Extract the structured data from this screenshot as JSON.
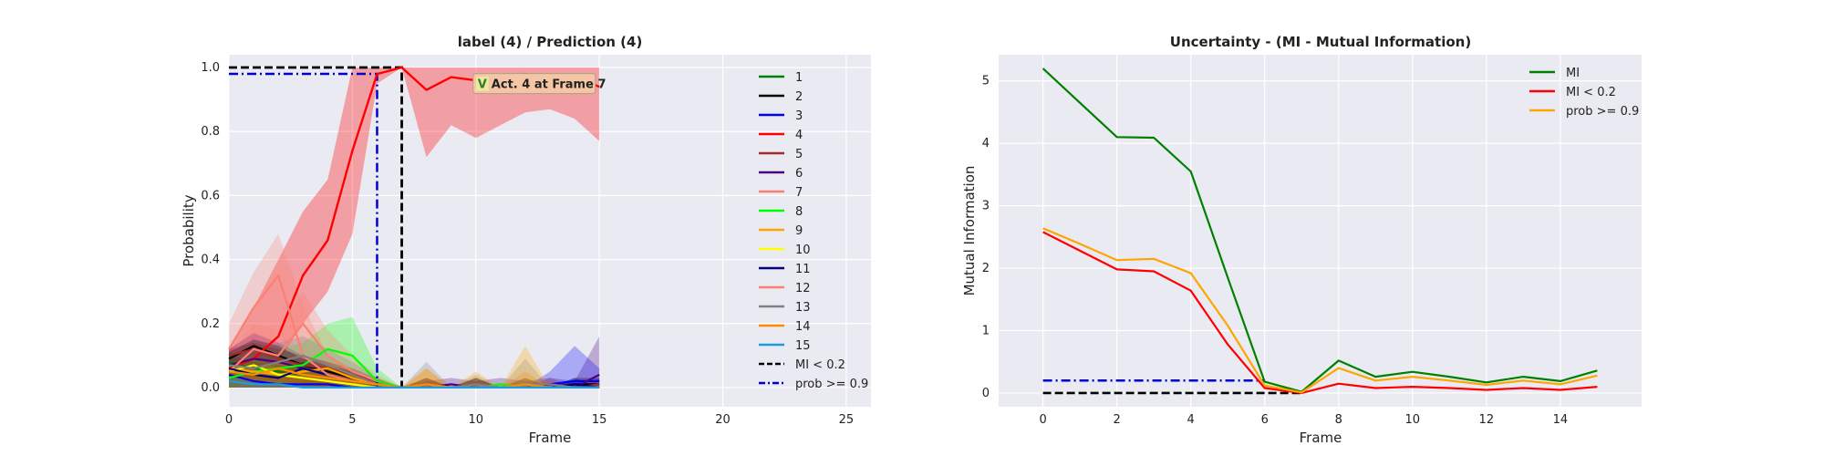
{
  "chart_data": [
    {
      "type": "line",
      "title": "label (4) / Prediction (4)",
      "xlabel": "Frame",
      "ylabel": "Probability",
      "xlim": [
        0,
        26
      ],
      "ylim": [
        -0.06,
        1.04
      ],
      "xticks": [
        "0",
        "5",
        "10",
        "15",
        "20",
        "25"
      ],
      "yticks": [
        "0.0",
        "0.2",
        "0.4",
        "0.6",
        "0.8",
        "1.0"
      ],
      "grid": true,
      "legend_position": "right",
      "x": [
        0,
        1,
        2,
        3,
        4,
        5,
        6,
        7,
        8,
        9,
        10,
        11,
        12,
        13,
        14,
        15
      ],
      "series": [
        {
          "name": "1",
          "color": "#008000",
          "values": [
            0.08,
            0.06,
            0.05,
            0.04,
            0.03,
            0.02,
            0.01,
            0.0,
            0.0,
            0.0,
            0.0,
            0.0,
            0.0,
            0.0,
            0.0,
            0.0
          ]
        },
        {
          "name": "2",
          "color": "#000000",
          "values": [
            0.09,
            0.13,
            0.1,
            0.07,
            0.05,
            0.03,
            0.01,
            0.0,
            0.01,
            0.0,
            0.01,
            0.0,
            0.01,
            0.0,
            0.01,
            0.01
          ]
        },
        {
          "name": "3",
          "color": "#0000ff",
          "values": [
            0.04,
            0.02,
            0.01,
            0.01,
            0.01,
            0.0,
            0.0,
            0.0,
            0.0,
            0.0,
            0.0,
            0.0,
            0.0,
            0.01,
            0.02,
            0.02
          ]
        },
        {
          "name": "4",
          "color": "#ff0000",
          "values": [
            0.06,
            0.09,
            0.16,
            0.35,
            0.46,
            0.74,
            0.98,
            1.0,
            0.93,
            0.97,
            0.96,
            0.97,
            0.98,
            0.96,
            0.97,
            0.94
          ]
        },
        {
          "name": "5",
          "color": "#a52a2a",
          "values": [
            0.1,
            0.12,
            0.09,
            0.07,
            0.06,
            0.04,
            0.02,
            0.0,
            0.01,
            0.0,
            0.01,
            0.0,
            0.0,
            0.01,
            0.0,
            0.01
          ]
        },
        {
          "name": "6",
          "color": "#4b0082",
          "values": [
            0.07,
            0.09,
            0.08,
            0.06,
            0.04,
            0.02,
            0.01,
            0.0,
            0.0,
            0.01,
            0.0,
            0.0,
            0.0,
            0.01,
            0.0,
            0.04
          ]
        },
        {
          "name": "7",
          "color": "#fa8072",
          "values": [
            0.05,
            0.12,
            0.1,
            0.2,
            0.1,
            0.05,
            0.02,
            0.0,
            0.0,
            0.0,
            0.0,
            0.0,
            0.0,
            0.0,
            0.0,
            0.0
          ]
        },
        {
          "name": "8",
          "color": "#00ff00",
          "values": [
            0.03,
            0.05,
            0.06,
            0.07,
            0.12,
            0.1,
            0.02,
            0.0,
            0.0,
            0.0,
            0.0,
            0.01,
            0.0,
            0.0,
            0.0,
            0.0
          ]
        },
        {
          "name": "9",
          "color": "#ffa500",
          "values": [
            0.06,
            0.05,
            0.04,
            0.05,
            0.06,
            0.03,
            0.01,
            0.0,
            0.01,
            0.0,
            0.01,
            0.0,
            0.01,
            0.0,
            0.0,
            0.0
          ]
        },
        {
          "name": "10",
          "color": "#ffff00",
          "values": [
            0.05,
            0.07,
            0.04,
            0.03,
            0.02,
            0.01,
            0.0,
            0.0,
            0.0,
            0.0,
            0.0,
            0.0,
            0.0,
            0.0,
            0.0,
            0.0
          ]
        },
        {
          "name": "11",
          "color": "#000080",
          "values": [
            0.06,
            0.04,
            0.03,
            0.06,
            0.04,
            0.02,
            0.01,
            0.0,
            0.0,
            0.0,
            0.0,
            0.0,
            0.0,
            0.0,
            0.01,
            0.0
          ]
        },
        {
          "name": "12",
          "color": "#fa8072",
          "values": [
            0.12,
            0.25,
            0.35,
            0.1,
            0.04,
            0.02,
            0.01,
            0.0,
            0.0,
            0.0,
            0.0,
            0.0,
            0.0,
            0.0,
            0.0,
            0.0
          ]
        },
        {
          "name": "13",
          "color": "#808080",
          "values": [
            0.07,
            0.06,
            0.08,
            0.1,
            0.07,
            0.04,
            0.01,
            0.0,
            0.01,
            0.0,
            0.01,
            0.0,
            0.01,
            0.01,
            0.0,
            0.0
          ]
        },
        {
          "name": "14",
          "color": "#ff8c00",
          "values": [
            0.05,
            0.04,
            0.06,
            0.04,
            0.03,
            0.02,
            0.01,
            0.0,
            0.01,
            0.0,
            0.0,
            0.0,
            0.01,
            0.0,
            0.0,
            0.0
          ]
        },
        {
          "name": "15",
          "color": "#1e9bdc",
          "values": [
            0.02,
            0.01,
            0.01,
            0.0,
            0.0,
            0.0,
            0.0,
            0.0,
            0.0,
            0.0,
            0.0,
            0.0,
            0.0,
            0.0,
            0.0,
            0.0
          ]
        }
      ],
      "bands": [
        {
          "series": "4",
          "lower": [
            0.03,
            0.05,
            0.08,
            0.2,
            0.3,
            0.48,
            0.95,
            1.0,
            0.72,
            0.82,
            0.78,
            0.82,
            0.86,
            0.87,
            0.84,
            0.77
          ],
          "upper": [
            0.12,
            0.25,
            0.4,
            0.55,
            0.65,
            1.0,
            1.0,
            1.0,
            1.0,
            1.0,
            1.0,
            1.0,
            1.0,
            1.0,
            1.0,
            1.0
          ]
        },
        {
          "series": "12",
          "lower": [
            0.02,
            0.08,
            0.18,
            0.02,
            0.0,
            0.0,
            0.0,
            0.0,
            0.0,
            0.0,
            0.0,
            0.0,
            0.0,
            0.0,
            0.0,
            0.0
          ],
          "upper": [
            0.2,
            0.36,
            0.48,
            0.26,
            0.1,
            0.06,
            0.02,
            0.0,
            0.0,
            0.0,
            0.0,
            0.0,
            0.0,
            0.0,
            0.0,
            0.0
          ]
        },
        {
          "series": "8",
          "lower": [
            0.0,
            0.0,
            0.0,
            0.0,
            0.02,
            0.01,
            0.0,
            0.0,
            0.0,
            0.0,
            0.0,
            0.0,
            0.0,
            0.0,
            0.0,
            0.0
          ],
          "upper": [
            0.06,
            0.1,
            0.12,
            0.14,
            0.2,
            0.22,
            0.06,
            0.0,
            0.0,
            0.0,
            0.0,
            0.0,
            0.0,
            0.0,
            0.0,
            0.0
          ]
        },
        {
          "series": "6",
          "lower": [
            0.0,
            0.0,
            0.0,
            0.0,
            0.0,
            0.0,
            0.0,
            0.0,
            0.0,
            0.0,
            0.0,
            0.0,
            0.0,
            0.0,
            0.0,
            0.0
          ],
          "upper": [
            0.12,
            0.17,
            0.14,
            0.1,
            0.08,
            0.05,
            0.02,
            0.0,
            0.02,
            0.03,
            0.02,
            0.03,
            0.02,
            0.03,
            0.02,
            0.16
          ]
        },
        {
          "series": "7",
          "lower": [
            0.0,
            0.0,
            0.0,
            0.0,
            0.0,
            0.0,
            0.0,
            0.0,
            0.0,
            0.0,
            0.0,
            0.0,
            0.0,
            0.0,
            0.0,
            0.0
          ],
          "upper": [
            0.1,
            0.2,
            0.18,
            0.3,
            0.18,
            0.1,
            0.04,
            0.0,
            0.0,
            0.0,
            0.0,
            0.0,
            0.0,
            0.0,
            0.0,
            0.0
          ]
        },
        {
          "series": "13",
          "lower": [
            0.0,
            0.0,
            0.0,
            0.0,
            0.0,
            0.0,
            0.0,
            0.0,
            0.0,
            0.0,
            0.0,
            0.0,
            0.0,
            0.0,
            0.0,
            0.0
          ],
          "upper": [
            0.12,
            0.1,
            0.14,
            0.16,
            0.12,
            0.08,
            0.03,
            0.0,
            0.08,
            0.0,
            0.04,
            0.0,
            0.09,
            0.0,
            0.0,
            0.0
          ]
        },
        {
          "series": "3",
          "lower": [
            0.0,
            0.0,
            0.0,
            0.0,
            0.0,
            0.0,
            0.0,
            0.0,
            0.0,
            0.0,
            0.0,
            0.0,
            0.0,
            0.0,
            0.0,
            0.0
          ],
          "upper": [
            0.06,
            0.04,
            0.02,
            0.02,
            0.02,
            0.0,
            0.0,
            0.0,
            0.0,
            0.0,
            0.0,
            0.0,
            0.0,
            0.05,
            0.13,
            0.06
          ]
        },
        {
          "series": "1",
          "lower": [
            0.0,
            0.0,
            0.0,
            0.0,
            0.0,
            0.0,
            0.0,
            0.0,
            0.0,
            0.0,
            0.0,
            0.0,
            0.0,
            0.0,
            0.0,
            0.0
          ],
          "upper": [
            0.1,
            0.08,
            0.07,
            0.06,
            0.04,
            0.03,
            0.01,
            0.0,
            0.0,
            0.0,
            0.0,
            0.0,
            0.0,
            0.0,
            0.0,
            0.0
          ]
        },
        {
          "series": "11",
          "lower": [
            0.0,
            0.0,
            0.0,
            0.0,
            0.0,
            0.0,
            0.0,
            0.0,
            0.0,
            0.0,
            0.0,
            0.0,
            0.0,
            0.0,
            0.0,
            0.0
          ],
          "upper": [
            0.08,
            0.06,
            0.05,
            0.08,
            0.06,
            0.03,
            0.02,
            0.0,
            0.0,
            0.0,
            0.0,
            0.0,
            0.0,
            0.0,
            0.03,
            0.0
          ]
        },
        {
          "series": "9",
          "lower": [
            0.0,
            0.0,
            0.0,
            0.0,
            0.0,
            0.0,
            0.0,
            0.0,
            0.0,
            0.0,
            0.0,
            0.0,
            0.0,
            0.0,
            0.0,
            0.0
          ],
          "upper": [
            0.08,
            0.07,
            0.06,
            0.07,
            0.08,
            0.05,
            0.02,
            0.0,
            0.06,
            0.0,
            0.05,
            0.0,
            0.13,
            0.0,
            0.0,
            0.0
          ]
        },
        {
          "series": "10",
          "lower": [
            0.0,
            0.0,
            0.0,
            0.0,
            0.0,
            0.0,
            0.0,
            0.0,
            0.0,
            0.0,
            0.0,
            0.0,
            0.0,
            0.0,
            0.0,
            0.0
          ],
          "upper": [
            0.07,
            0.1,
            0.06,
            0.05,
            0.04,
            0.02,
            0.0,
            0.0,
            0.0,
            0.0,
            0.0,
            0.0,
            0.0,
            0.0,
            0.0,
            0.0
          ]
        },
        {
          "series": "5",
          "lower": [
            0.0,
            0.0,
            0.0,
            0.0,
            0.0,
            0.0,
            0.0,
            0.0,
            0.0,
            0.0,
            0.0,
            0.0,
            0.0,
            0.0,
            0.0,
            0.0
          ],
          "upper": [
            0.12,
            0.14,
            0.12,
            0.1,
            0.08,
            0.06,
            0.03,
            0.0,
            0.03,
            0.0,
            0.03,
            0.0,
            0.0,
            0.03,
            0.0,
            0.03
          ]
        },
        {
          "series": "2",
          "lower": [
            0.0,
            0.0,
            0.0,
            0.0,
            0.0,
            0.0,
            0.0,
            0.0,
            0.0,
            0.0,
            0.0,
            0.0,
            0.0,
            0.0,
            0.0,
            0.0
          ],
          "upper": [
            0.11,
            0.15,
            0.13,
            0.09,
            0.07,
            0.05,
            0.02,
            0.0,
            0.03,
            0.0,
            0.03,
            0.0,
            0.03,
            0.0,
            0.03,
            0.03
          ]
        },
        {
          "series": "14",
          "lower": [
            0.0,
            0.0,
            0.0,
            0.0,
            0.0,
            0.0,
            0.0,
            0.0,
            0.0,
            0.0,
            0.0,
            0.0,
            0.0,
            0.0,
            0.0,
            0.0
          ],
          "upper": [
            0.07,
            0.06,
            0.08,
            0.06,
            0.05,
            0.04,
            0.02,
            0.0,
            0.06,
            0.0,
            0.0,
            0.0,
            0.05,
            0.0,
            0.0,
            0.0
          ]
        },
        {
          "series": "15",
          "lower": [
            0.0,
            0.0,
            0.0,
            0.0,
            0.0,
            0.0,
            0.0,
            0.0,
            0.0,
            0.0,
            0.0,
            0.0,
            0.0,
            0.0,
            0.0,
            0.0
          ],
          "upper": [
            0.04,
            0.02,
            0.02,
            0.01,
            0.0,
            0.0,
            0.0,
            0.0,
            0.0,
            0.0,
            0.0,
            0.0,
            0.0,
            0.0,
            0.0,
            0.0
          ]
        }
      ],
      "threshold_lines": [
        {
          "name": "MI < 0.2",
          "color": "#000000",
          "style": "dashed",
          "level": 1.0,
          "x_from": 0,
          "x_at": 7
        },
        {
          "name": "prob >= 0.9",
          "color": "#0000cd",
          "style": "dashdot",
          "level": 0.98,
          "x_from": 0,
          "x_at": 6
        }
      ],
      "annotation": {
        "mark": "V",
        "text": "Act. 4 at Frame 7",
        "x": 10.0,
        "y": 0.95
      }
    },
    {
      "type": "line",
      "title": "Uncertainty - (MI - Mutual Information)",
      "xlabel": "Frame",
      "ylabel": "Mutual Information",
      "xlim": [
        -1.2,
        16.2
      ],
      "ylim": [
        -0.22,
        5.42
      ],
      "xticks": [
        "0",
        "2",
        "4",
        "6",
        "8",
        "10",
        "12",
        "14"
      ],
      "yticks": [
        "0",
        "1",
        "2",
        "3",
        "4",
        "5"
      ],
      "grid": true,
      "legend_position": "top-right",
      "x": [
        0,
        1,
        2,
        3,
        4,
        5,
        6,
        7,
        8,
        9,
        10,
        11,
        12,
        13,
        14,
        15
      ],
      "series": [
        {
          "name": "MI",
          "color": "#008000",
          "values": [
            5.2,
            4.65,
            4.1,
            4.09,
            3.55,
            1.85,
            0.18,
            0.02,
            0.52,
            0.26,
            0.34,
            0.26,
            0.17,
            0.26,
            0.19,
            0.36
          ]
        },
        {
          "name": "MI < 0.2",
          "color": "#ff0000",
          "values": [
            2.58,
            2.28,
            1.98,
            1.95,
            1.64,
            0.78,
            0.08,
            0.0,
            0.15,
            0.08,
            0.1,
            0.08,
            0.05,
            0.08,
            0.05,
            0.1
          ]
        },
        {
          "name": "prob >= 0.9",
          "color": "#ffa500",
          "values": [
            2.64,
            2.39,
            2.13,
            2.15,
            1.92,
            1.08,
            0.12,
            0.01,
            0.4,
            0.2,
            0.26,
            0.2,
            0.13,
            0.2,
            0.14,
            0.28
          ]
        }
      ],
      "reference_lines": [
        {
          "color": "#0000cd",
          "style": "dashdot",
          "y": 0.2,
          "x_from": 0,
          "x_to": 6
        },
        {
          "color": "#000000",
          "style": "dashed",
          "y": 0.0,
          "x_from": 0,
          "x_to": 7
        }
      ]
    }
  ]
}
